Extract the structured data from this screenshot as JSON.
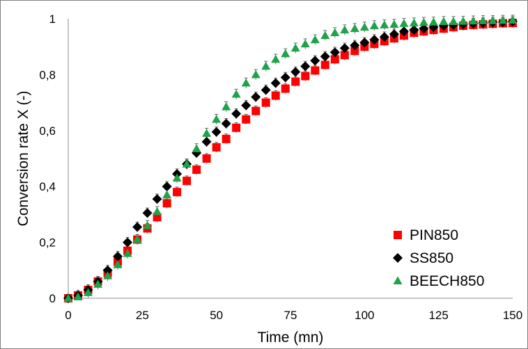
{
  "chart_data": {
    "type": "scatter",
    "xlabel": "Time (mn)",
    "ylabel": "Conversion rate X (-)",
    "xlim": [
      0,
      150
    ],
    "ylim": [
      0,
      1
    ],
    "x_ticks": [
      "0",
      "25",
      "50",
      "75",
      "100",
      "125",
      "150"
    ],
    "y_ticks": [
      "0",
      "0,2",
      "0,4",
      "0,6",
      "0,8",
      "1"
    ],
    "grid": false,
    "legend_position": "bottom-right",
    "error_bars": true,
    "series": [
      {
        "name": "PIN850",
        "marker": "square",
        "color": "#ff0000",
        "x": [
          0,
          3.3,
          6.7,
          10,
          13.3,
          16.7,
          20,
          23.3,
          26.7,
          30,
          33.3,
          36.7,
          40,
          43.3,
          46.7,
          50,
          53.3,
          56.7,
          60,
          63.3,
          66.7,
          70,
          73.3,
          76.7,
          80,
          83.3,
          86.7,
          90,
          93.3,
          96.7,
          100,
          103.3,
          106.7,
          110,
          113.3,
          116.7,
          120,
          123.3,
          126.7,
          130,
          133.3,
          136.7,
          140,
          143.3,
          146.7,
          150
        ],
        "y": [
          0,
          0.01,
          0.03,
          0.06,
          0.09,
          0.13,
          0.17,
          0.21,
          0.25,
          0.29,
          0.34,
          0.38,
          0.42,
          0.46,
          0.5,
          0.54,
          0.57,
          0.61,
          0.64,
          0.67,
          0.7,
          0.725,
          0.75,
          0.775,
          0.795,
          0.815,
          0.835,
          0.855,
          0.87,
          0.885,
          0.9,
          0.91,
          0.92,
          0.93,
          0.94,
          0.95,
          0.955,
          0.96,
          0.965,
          0.97,
          0.975,
          0.978,
          0.98,
          0.982,
          0.984,
          0.985
        ]
      },
      {
        "name": "SS850",
        "marker": "diamond",
        "color": "#000000",
        "x": [
          0,
          3.3,
          6.7,
          10,
          13.3,
          16.7,
          20,
          23.3,
          26.7,
          30,
          33.3,
          36.7,
          40,
          43.3,
          46.7,
          50,
          53.3,
          56.7,
          60,
          63.3,
          66.7,
          70,
          73.3,
          76.7,
          80,
          83.3,
          86.7,
          90,
          93.3,
          96.7,
          100,
          103.3,
          106.7,
          110,
          113.3,
          116.7,
          120,
          123.3,
          126.7,
          130,
          133.3,
          136.7,
          140,
          143.3,
          146.7,
          150
        ],
        "y": [
          0,
          0.01,
          0.03,
          0.06,
          0.1,
          0.15,
          0.2,
          0.255,
          0.305,
          0.355,
          0.4,
          0.445,
          0.48,
          0.52,
          0.56,
          0.595,
          0.625,
          0.66,
          0.69,
          0.72,
          0.745,
          0.77,
          0.79,
          0.81,
          0.83,
          0.85,
          0.865,
          0.88,
          0.895,
          0.905,
          0.915,
          0.925,
          0.935,
          0.945,
          0.955,
          0.96,
          0.965,
          0.97,
          0.975,
          0.978,
          0.98,
          0.983,
          0.985,
          0.987,
          0.988,
          0.99
        ]
      },
      {
        "name": "BEECH850",
        "marker": "triangle",
        "color": "#1fa34a",
        "x": [
          0,
          3.3,
          6.7,
          10,
          13.3,
          16.7,
          20,
          23.3,
          26.7,
          30,
          33.3,
          36.7,
          40,
          43.3,
          46.7,
          50,
          53.3,
          56.7,
          60,
          63.3,
          66.7,
          70,
          73.3,
          76.7,
          80,
          83.3,
          86.7,
          90,
          93.3,
          96.7,
          100,
          103.3,
          106.7,
          110,
          113.3,
          116.7,
          120,
          123.3,
          126.7,
          130,
          133.3,
          136.7,
          140,
          143.3,
          146.7,
          150
        ],
        "y": [
          0,
          0.005,
          0.02,
          0.05,
          0.08,
          0.12,
          0.16,
          0.21,
          0.26,
          0.31,
          0.37,
          0.43,
          0.48,
          0.535,
          0.59,
          0.64,
          0.685,
          0.73,
          0.77,
          0.8,
          0.83,
          0.855,
          0.875,
          0.895,
          0.91,
          0.925,
          0.94,
          0.95,
          0.96,
          0.965,
          0.97,
          0.975,
          0.978,
          0.98,
          0.983,
          0.985,
          0.987,
          0.988,
          0.99,
          0.99,
          0.991,
          0.992,
          0.993,
          0.993,
          0.994,
          0.995
        ]
      }
    ]
  }
}
